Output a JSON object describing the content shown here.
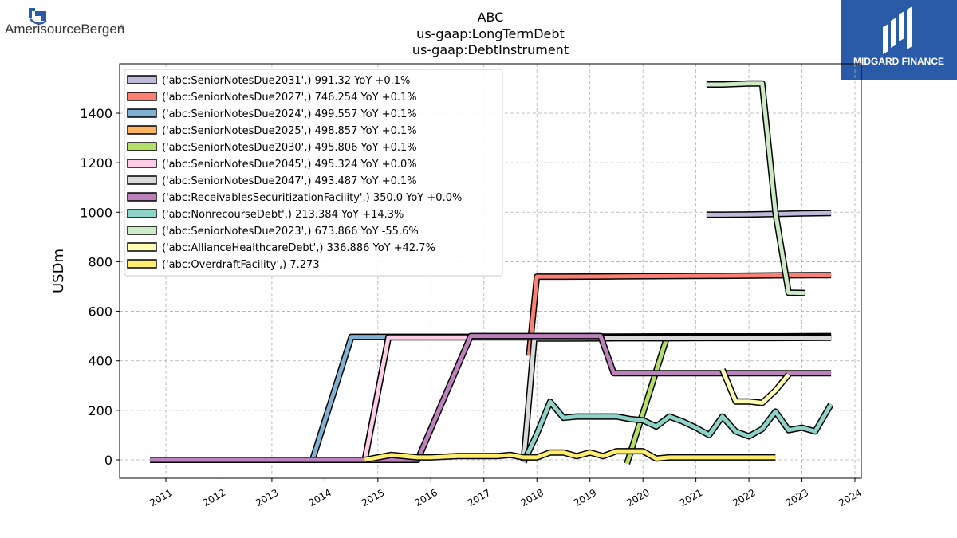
{
  "header": {
    "title_lines": [
      "ABC",
      "us-gaap:LongTermDebt",
      "us-gaap:DebtInstrument"
    ],
    "left_logo_text": "AmerisourceBergen",
    "left_logo_mark": "®",
    "right_logo_text": "MIDGARD FINANCE"
  },
  "colors": {
    "brand_box": "#2a5ba8",
    "grid": "#b0b0b0",
    "outline": "#000000"
  },
  "chart_data": {
    "type": "line",
    "title": "ABC\nus-gaap:LongTermDebt\nus-gaap:DebtInstrument",
    "xlabel": "",
    "ylabel": "USDm",
    "xlim": [
      2010.0,
      2024.0
    ],
    "ylim": [
      -75,
      1590
    ],
    "x_ticks": [
      "2011",
      "2012",
      "2013",
      "2014",
      "2015",
      "2016",
      "2017",
      "2018",
      "2019",
      "2020",
      "2021",
      "2022",
      "2023",
      "2024"
    ],
    "y_ticks": [
      0,
      200,
      400,
      600,
      800,
      1000,
      1200,
      1400
    ],
    "grid": true,
    "legend_position": "top-left",
    "series": [
      {
        "name": "('abc:SeniorNotesDue2031',) 991.32 YoY +0.1%",
        "color": "#bebada",
        "x": [
          2021.2,
          2021.5,
          2022.0,
          2022.5,
          2023.0,
          2023.55
        ],
        "y": [
          990,
          990,
          991,
          993,
          995,
          997
        ]
      },
      {
        "name": "('abc:SeniorNotesDue2027',) 746.254 YoY +0.1%",
        "color": "#fb8072",
        "x": [
          2017.85,
          2018.0,
          2018.5,
          2019.5,
          2020.5,
          2021.5,
          2022.5,
          2023.55
        ],
        "y": [
          420,
          740,
          740,
          741,
          742,
          743,
          745,
          746
        ]
      },
      {
        "name": "('abc:SeniorNotesDue2024',) 499.557 YoY +0.1%",
        "color": "#80b1d3",
        "x": [
          2013.75,
          2014.5,
          2015.5,
          2016.5,
          2017.5,
          2018.5,
          2019.5,
          2020.5,
          2021.5,
          2022.5,
          2023.55
        ],
        "y": [
          -10,
          497,
          497,
          497,
          498,
          498,
          498,
          499,
          499,
          499,
          500
        ]
      },
      {
        "name": "('abc:SeniorNotesDue2025',) 498.857 YoY +0.1%",
        "color": "#fdb462",
        "x": [
          2014.75,
          2015.2,
          2016.0,
          2017.0,
          2018.0,
          2019.0,
          2020.0,
          2021.0,
          2022.0,
          2023.0,
          2023.55
        ],
        "y": [
          -5,
          496,
          496,
          496,
          497,
          497,
          497,
          497,
          498,
          498,
          499
        ]
      },
      {
        "name": "('abc:SeniorNotesDue2030',) 495.806 YoY +0.1%",
        "color": "#b3de69",
        "x": [
          2019.7,
          2020.45,
          2021.0,
          2022.0,
          2023.0,
          2023.55
        ],
        "y": [
          -15,
          494,
          494,
          495,
          495,
          496
        ]
      },
      {
        "name": "('abc:SeniorNotesDue2045',) 495.324 YoY +0.0%",
        "color": "#fccde5",
        "x": [
          2014.75,
          2015.2,
          2016.0,
          2017.0,
          2018.0,
          2019.0,
          2020.0,
          2021.0,
          2022.0,
          2023.0,
          2023.55
        ],
        "y": [
          -5,
          495,
          495,
          495,
          495,
          495,
          495,
          495,
          495,
          495,
          495
        ]
      },
      {
        "name": "('abc:SeniorNotesDue2047',) 493.487 YoY +0.1%",
        "color": "#d9d9d9",
        "x": [
          2017.75,
          2017.95,
          2018.5,
          2019.5,
          2020.5,
          2021.5,
          2022.5,
          2023.55
        ],
        "y": [
          -5,
          490,
          490,
          491,
          491,
          492,
          492,
          493
        ]
      },
      {
        "name": "('abc:ReceivablesSecuritizationFacility',) 350.0 YoY +0.0%",
        "color": "#bc80bd",
        "x": [
          2010.7,
          2011.5,
          2012.5,
          2013.5,
          2014.5,
          2015.0,
          2015.75,
          2016.75,
          2017.5,
          2018.5,
          2019.2,
          2019.45,
          2020.0,
          2021.0,
          2022.0,
          2023.0,
          2023.55
        ],
        "y": [
          0,
          0,
          0,
          0,
          0,
          0,
          0,
          500,
          500,
          500,
          500,
          350,
          350,
          350,
          350,
          350,
          350
        ]
      },
      {
        "name": "('abc:NonrecourseDebt',) 213.384 YoY +14.3%",
        "color": "#8dd3c7",
        "x": [
          2017.75,
          2018.0,
          2018.25,
          2018.5,
          2018.75,
          2019.0,
          2019.25,
          2019.5,
          2019.75,
          2020.0,
          2020.25,
          2020.5,
          2020.75,
          2021.0,
          2021.25,
          2021.5,
          2021.75,
          2022.0,
          2022.25,
          2022.5,
          2022.75,
          2023.0,
          2023.25,
          2023.55
        ],
        "y": [
          -10,
          105,
          235,
          170,
          175,
          175,
          175,
          175,
          165,
          160,
          135,
          175,
          155,
          130,
          100,
          175,
          115,
          95,
          125,
          195,
          120,
          130,
          115,
          225
        ]
      },
      {
        "name": "('abc:SeniorNotesDue2023',) 673.866 YoY -55.6%",
        "color": "#ccebc5",
        "x": [
          2021.2,
          2021.5,
          2022.0,
          2022.25,
          2022.5,
          2022.75,
          2023.05
        ],
        "y": [
          1516,
          1516,
          1520,
          1520,
          1000,
          675,
          674
        ]
      },
      {
        "name": "('abc:AllianceHealthcareDebt',) 336.886 YoY +42.7%",
        "color": "#ffffb3",
        "x": [
          2021.5,
          2021.75,
          2022.0,
          2022.25,
          2022.5,
          2022.75
        ],
        "y": [
          365,
          236,
          236,
          230,
          280,
          345
        ]
      },
      {
        "name": "('abc:OverdraftFacility',) 7.273",
        "color": "#ffed6f",
        "x": [
          2014.75,
          2015.25,
          2015.75,
          2016.0,
          2016.5,
          2017.0,
          2017.25,
          2017.5,
          2017.75,
          2018.0,
          2018.25,
          2018.5,
          2018.75,
          2019.0,
          2019.25,
          2019.5,
          2019.75,
          2020.0,
          2020.25,
          2020.5,
          2021.0,
          2021.5,
          2022.0,
          2022.5
        ],
        "y": [
          0,
          20,
          10,
          10,
          15,
          15,
          15,
          20,
          10,
          10,
          30,
          30,
          15,
          30,
          15,
          35,
          35,
          35,
          5,
          10,
          10,
          10,
          10,
          10
        ]
      }
    ]
  }
}
